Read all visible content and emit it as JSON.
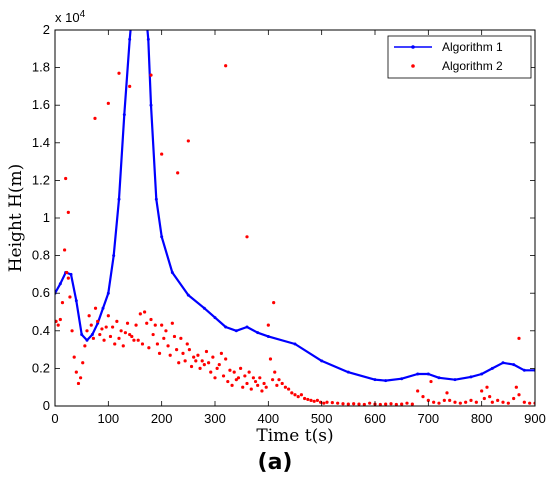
{
  "chart_data": {
    "type": "line",
    "title": "",
    "xlabel": "Time t(s)",
    "ylabel": "Height H(m)",
    "xlim": [
      0,
      900
    ],
    "ylim": [
      0,
      20000
    ],
    "xticks": [
      0,
      100,
      200,
      300,
      400,
      500,
      600,
      700,
      800,
      900
    ],
    "yticks": [
      0,
      2000,
      4000,
      6000,
      8000,
      10000,
      12000,
      14000,
      16000,
      18000,
      20000
    ],
    "ytick_labels": [
      "0",
      "0.2",
      "0.4",
      "0.6",
      "0.8",
      "1",
      "1.2",
      "1.4",
      "1.6",
      "1.8",
      "2"
    ],
    "y_multiplier": "x 10",
    "y_multiplier_exp": "4",
    "grid": false,
    "legend_position": "top-right",
    "series": [
      {
        "name": "Algorithm 1",
        "style": "line-with-dots",
        "color": "#0000ff",
        "x": [
          0,
          10,
          20,
          30,
          40,
          50,
          60,
          70,
          80,
          90,
          100,
          110,
          120,
          130,
          140,
          145,
          150,
          160,
          170,
          175,
          180,
          190,
          200,
          220,
          250,
          280,
          300,
          320,
          340,
          360,
          380,
          400,
          450,
          500,
          550,
          600,
          620,
          650,
          680,
          700,
          720,
          750,
          780,
          800,
          820,
          840,
          860,
          880,
          900
        ],
        "y": [
          6000,
          6500,
          7100,
          7000,
          5600,
          3800,
          3500,
          3800,
          4400,
          5200,
          6000,
          8000,
          11000,
          15500,
          19500,
          21000,
          22000,
          22000,
          21000,
          19500,
          16000,
          11000,
          9000,
          7100,
          5900,
          5200,
          4700,
          4200,
          4000,
          4200,
          3900,
          3700,
          3300,
          2400,
          1800,
          1400,
          1350,
          1450,
          1700,
          1700,
          1500,
          1400,
          1550,
          1700,
          2000,
          2300,
          2200,
          1900,
          1900
        ]
      },
      {
        "name": "Algorithm 2",
        "style": "scatter",
        "color": "#ff0000",
        "x": [
          2,
          6,
          10,
          14,
          18,
          22,
          25,
          28,
          32,
          36,
          40,
          44,
          48,
          52,
          56,
          60,
          64,
          68,
          72,
          76,
          80,
          84,
          88,
          92,
          96,
          100,
          104,
          108,
          112,
          116,
          120,
          124,
          128,
          132,
          136,
          140,
          144,
          148,
          152,
          156,
          160,
          164,
          168,
          172,
          176,
          180,
          184,
          188,
          192,
          196,
          200,
          204,
          208,
          212,
          216,
          220,
          224,
          228,
          232,
          236,
          240,
          244,
          248,
          252,
          256,
          260,
          264,
          268,
          272,
          276,
          280,
          284,
          288,
          292,
          296,
          300,
          304,
          308,
          312,
          316,
          320,
          324,
          328,
          332,
          336,
          340,
          344,
          348,
          352,
          356,
          360,
          364,
          368,
          372,
          376,
          380,
          384,
          388,
          392,
          396,
          400,
          404,
          408,
          412,
          416,
          420,
          426,
          432,
          438,
          444,
          450,
          456,
          462,
          468,
          474,
          480,
          486,
          492,
          498,
          504,
          510,
          520,
          530,
          540,
          550,
          560,
          570,
          580,
          590,
          600,
          610,
          620,
          630,
          640,
          650,
          660,
          670,
          680,
          690,
          700,
          705,
          710,
          720,
          730,
          735,
          740,
          750,
          760,
          770,
          780,
          790,
          800,
          805,
          810,
          815,
          820,
          830,
          840,
          850,
          860,
          865,
          870,
          880,
          890,
          900,
          20,
          25,
          75,
          100,
          120,
          140,
          180,
          200,
          230,
          250,
          320,
          360,
          410,
          870
        ],
        "y": [
          4500,
          4300,
          4600,
          5500,
          8300,
          7100,
          6800,
          5800,
          4000,
          2600,
          1800,
          1200,
          1500,
          2300,
          3200,
          4000,
          4800,
          4300,
          3600,
          5200,
          4500,
          3800,
          4100,
          3500,
          4200,
          4800,
          3700,
          4200,
          3300,
          4500,
          3600,
          4000,
          3200,
          3900,
          4400,
          3800,
          3700,
          3500,
          4300,
          3500,
          4900,
          3300,
          5000,
          4400,
          3100,
          4600,
          3800,
          4300,
          3300,
          2800,
          4300,
          3600,
          4000,
          3200,
          2700,
          4400,
          3700,
          3000,
          2300,
          3600,
          2800,
          2400,
          3300,
          3000,
          2100,
          2600,
          2400,
          2700,
          2000,
          2400,
          2200,
          2900,
          2300,
          1800,
          2600,
          1500,
          2000,
          2200,
          2800,
          1600,
          2500,
          1300,
          1900,
          1100,
          1800,
          1400,
          1500,
          2000,
          1000,
          1600,
          1200,
          1800,
          900,
          1500,
          1300,
          1100,
          1500,
          800,
          1200,
          1000,
          4300,
          2500,
          1400,
          1800,
          1100,
          1400,
          1200,
          1000,
          900,
          700,
          600,
          500,
          600,
          400,
          350,
          300,
          250,
          300,
          200,
          150,
          200,
          180,
          150,
          120,
          100,
          120,
          100,
          80,
          150,
          100,
          80,
          100,
          120,
          80,
          100,
          150,
          100,
          800,
          500,
          300,
          1300,
          200,
          150,
          300,
          700,
          300,
          200,
          150,
          200,
          300,
          200,
          800,
          400,
          1000,
          500,
          200,
          300,
          200,
          150,
          400,
          1000,
          600,
          200,
          150,
          150,
          12100,
          10300,
          15300,
          16100,
          17700,
          17000,
          17600,
          13400,
          12400,
          14100,
          18100,
          9000,
          5500,
          3600
        ]
      }
    ]
  },
  "caption": "(a)"
}
